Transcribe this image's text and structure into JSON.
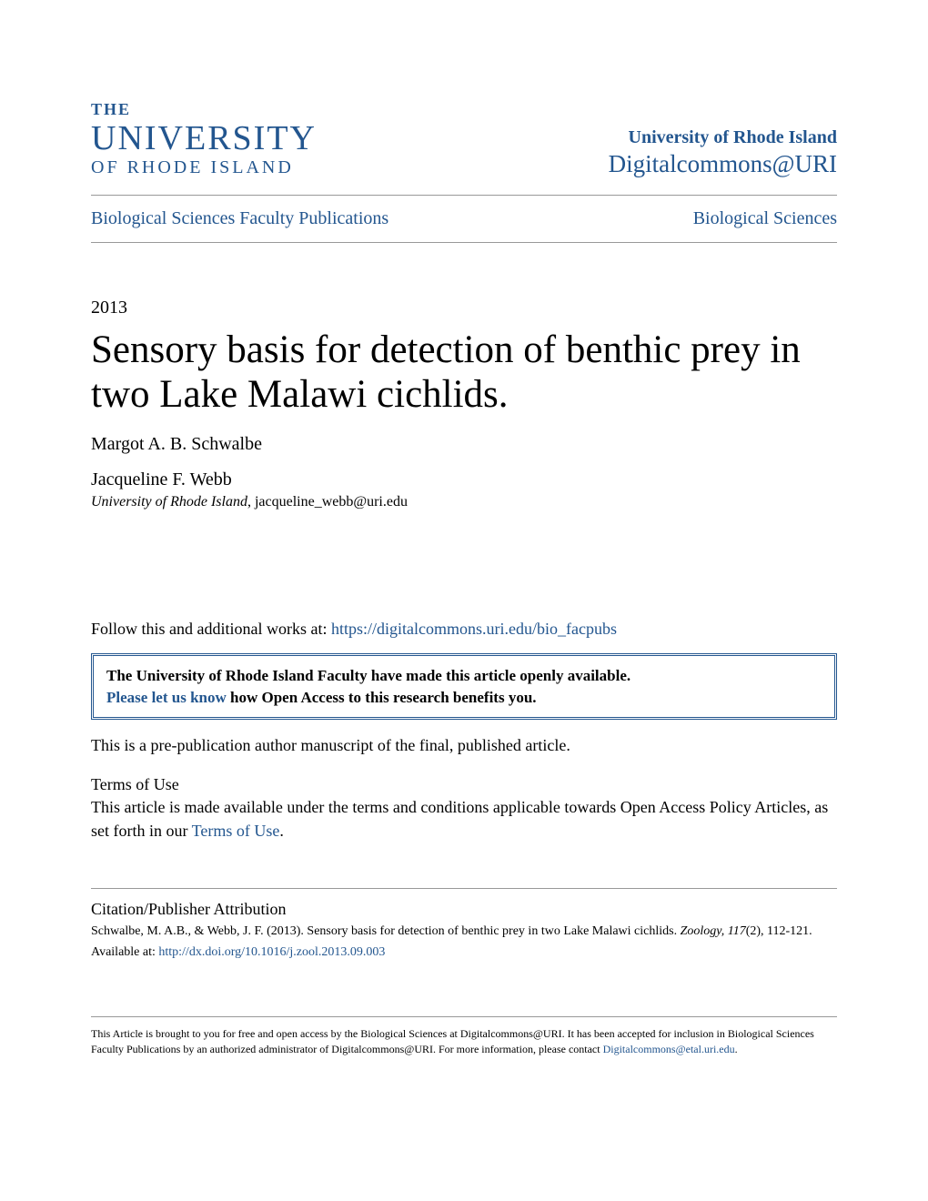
{
  "colors": {
    "brand": "#23568f",
    "text": "#000000",
    "border": "#999999",
    "background": "#ffffff"
  },
  "logo": {
    "line1": "THE",
    "line2": "UNIVERSITY",
    "line3": "OF RHODE ISLAND"
  },
  "header": {
    "university_link": "University of Rhode Island",
    "digitalcommons_link": "Digitalcommons@URI"
  },
  "nav": {
    "left": "Biological Sciences Faculty Publications",
    "right": "Biological Sciences"
  },
  "year": "2013",
  "title": "Sensory basis for detection of benthic prey in two Lake Malawi cichlids.",
  "authors": [
    {
      "name": "Margot A. B. Schwalbe",
      "affiliation": "",
      "email": ""
    },
    {
      "name": "Jacqueline F. Webb",
      "affiliation": "University of Rhode Island",
      "email": "jacqueline_webb@uri.edu"
    }
  ],
  "follow": {
    "prefix": "Follow this and additional works at: ",
    "link": "https://digitalcommons.uri.edu/bio_facpubs"
  },
  "open_access": {
    "bold_line": "The University of Rhode Island Faculty have made this article openly available.",
    "link_text": "Please let us know",
    "rest": " how Open Access to this research benefits you."
  },
  "prepub": "This is a pre-publication author manuscript of the final, published article.",
  "terms": {
    "heading": "Terms of Use",
    "text_before": "This article is made available under the terms and conditions applicable towards Open Access Policy Articles, as set forth in our ",
    "link": "Terms of Use",
    "text_after": "."
  },
  "citation": {
    "heading": "Citation/Publisher Attribution",
    "text_before": "Schwalbe, M. A.B., & Webb, J. F. (2013). Sensory basis for detection of benthic prey in two Lake Malawi cichlids. ",
    "journal": "Zoology, 117",
    "text_after": "(2), 112-121.",
    "available_prefix": "Available at: ",
    "doi_link": "http://dx.doi.org/10.1016/j.zool.2013.09.003"
  },
  "footer": {
    "text_before": "This Article is brought to you for free and open access by the Biological Sciences at Digitalcommons@URI. It has been accepted for inclusion in Biological Sciences Faculty Publications by an authorized administrator of Digitalcommons@URI. For more information, please contact ",
    "link": "Digitalcommons@etal.uri.edu",
    "text_after": "."
  }
}
